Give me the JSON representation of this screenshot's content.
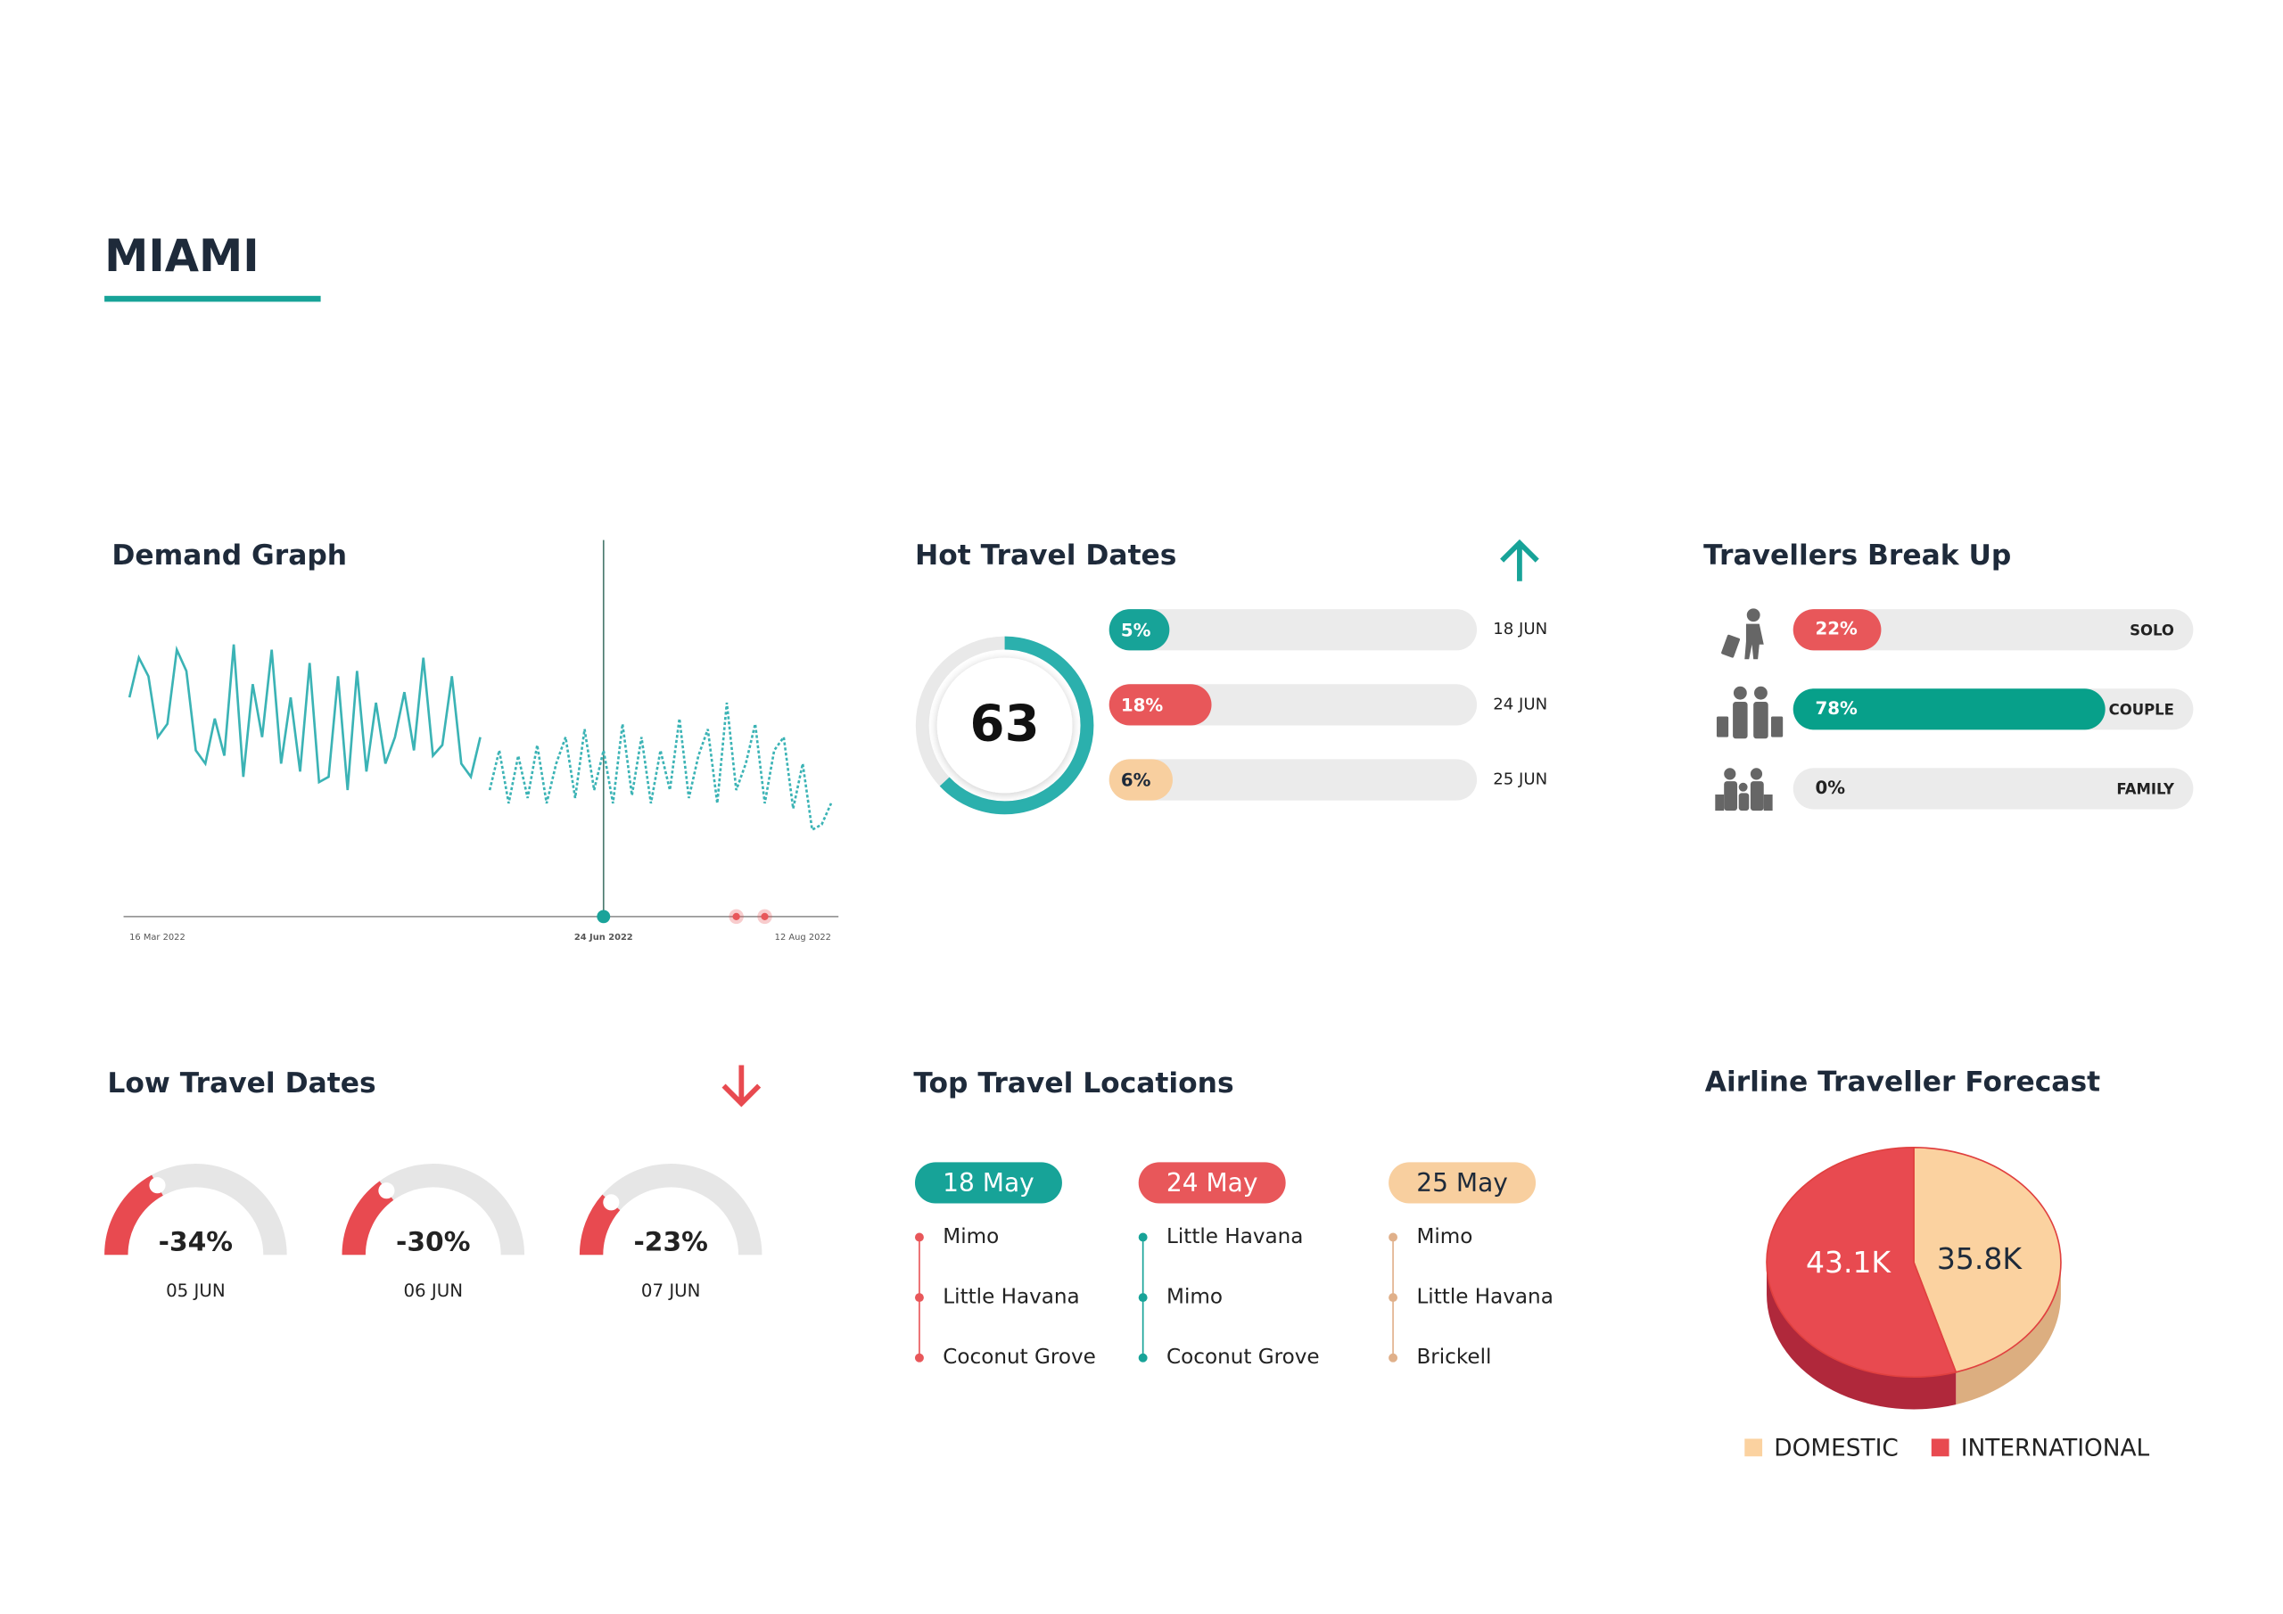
{
  "title": "MIAMI",
  "chart_data": [
    {
      "type": "line",
      "title": "Demand Graph",
      "categories": [
        "16 Mar 2022",
        null,
        null,
        null,
        null,
        null,
        null,
        null,
        null,
        null,
        null,
        null,
        null,
        null,
        null,
        null,
        null,
        null,
        null,
        null,
        null,
        null,
        null,
        null,
        null,
        null,
        null,
        null,
        null,
        null,
        null,
        null,
        null,
        null,
        null,
        null,
        null,
        null,
        null,
        null,
        null,
        null,
        null,
        null,
        null,
        null,
        null,
        null,
        null,
        null,
        "24 Jun 2022",
        null,
        null,
        null,
        null,
        null,
        null,
        null,
        null,
        null,
        null,
        null,
        null,
        null,
        null,
        null,
        null,
        null,
        null,
        null,
        null,
        null,
        null,
        null,
        "12 Aug 2022"
      ],
      "series": [
        {
          "color": "#3bb3b5",
          "dash": "solid",
          "values": [
            70,
            85,
            78,
            55,
            60,
            88,
            80,
            50,
            45,
            62,
            48,
            90,
            40,
            75,
            55,
            88,
            45,
            70,
            42,
            83,
            38,
            40,
            78,
            35,
            80,
            42,
            68,
            45,
            55,
            72,
            50,
            85,
            48,
            52,
            78,
            45,
            40,
            55,
            null,
            null,
            null,
            null,
            null,
            null,
            null,
            null,
            null,
            null,
            null,
            null,
            null,
            null,
            null,
            null,
            null,
            null,
            null,
            null,
            null,
            null,
            null,
            null,
            null,
            null,
            null,
            null,
            null,
            null,
            null,
            null,
            null,
            null,
            null,
            null,
            null
          ]
        },
        {
          "color": "#3bb3b5",
          "dash": "dotted",
          "values": [
            null,
            null,
            null,
            null,
            null,
            null,
            null,
            null,
            null,
            null,
            null,
            null,
            null,
            null,
            null,
            null,
            null,
            null,
            null,
            null,
            null,
            null,
            null,
            null,
            null,
            null,
            null,
            null,
            null,
            null,
            null,
            null,
            null,
            null,
            null,
            null,
            null,
            null,
            35,
            50,
            30,
            48,
            32,
            52,
            30,
            45,
            55,
            32,
            58,
            35,
            50,
            30,
            60,
            33,
            55,
            30,
            50,
            35,
            62,
            32,
            48,
            58,
            30,
            68,
            35,
            45,
            60,
            30,
            50,
            55,
            28,
            45,
            20,
            22,
            30
          ]
        }
      ],
      "ylim": [
        0,
        100
      ],
      "highlight": {
        "index": 50,
        "color": "#1aa39a"
      },
      "markers": [
        {
          "index": 64,
          "color": "#e8575a"
        },
        {
          "index": 67,
          "color": "#e8575a"
        }
      ]
    },
    {
      "type": "gauge_bars",
      "title": "Hot Travel Dates",
      "score": 63,
      "score_lim": [
        0,
        100
      ],
      "score_color": "#2bb0ad",
      "categories": [
        "18 JUN",
        "24 JUN",
        "25 JUN"
      ],
      "values": [
        5,
        18,
        6
      ],
      "value_labels": [
        "5%",
        "18%",
        "6%"
      ],
      "colors": [
        "#17a398",
        "#e8575a",
        "#f8cf9f"
      ],
      "xlim": [
        0,
        100
      ]
    },
    {
      "type": "hbar",
      "title": "Travellers Break Up",
      "categories": [
        "SOLO",
        "COUPLE",
        "FAMILY"
      ],
      "values": [
        22,
        78,
        0
      ],
      "value_labels": [
        "22%",
        "78%",
        "0%"
      ],
      "colors": [
        "#e8575a",
        "#07a08a",
        "#e8575a"
      ],
      "xlim": [
        0,
        100
      ]
    },
    {
      "type": "half_gauge",
      "title": "Low Travel Dates",
      "categories": [
        "05 JUN",
        "06 JUN",
        "07 JUN"
      ],
      "values": [
        -34,
        -30,
        -23
      ],
      "value_labels": [
        "-34%",
        "-30%",
        "-23%"
      ],
      "color": "#e84a50",
      "ylim": [
        0,
        -100
      ]
    },
    {
      "type": "list",
      "title": "Top Travel Locations",
      "groups": [
        {
          "name": "18 May",
          "color": "#17a398",
          "dot_color": "#e8575a",
          "items": [
            "Mimo",
            "Little Havana",
            "Coconut Grove"
          ]
        },
        {
          "name": "24 May",
          "color": "#e8575a",
          "dot_color": "#17a398",
          "items": [
            "Little Havana",
            "Mimo",
            "Coconut Grove"
          ]
        },
        {
          "name": "25 May",
          "color": "#f8cf9f",
          "dot_color": "#e0b08a",
          "items": [
            "Mimo",
            "Little Havana",
            "Brickell"
          ]
        }
      ]
    },
    {
      "type": "pie",
      "title": "Airline Traveller Forecast",
      "categories": [
        "DOMESTIC",
        "INTERNATIONAL"
      ],
      "values": [
        35800,
        43100
      ],
      "value_labels": [
        "35.8K",
        "43.1K"
      ],
      "colors": [
        "#fbd2a0",
        "#e84a50"
      ],
      "side_colors": [
        "#dcae80",
        "#b0283b"
      ]
    }
  ]
}
